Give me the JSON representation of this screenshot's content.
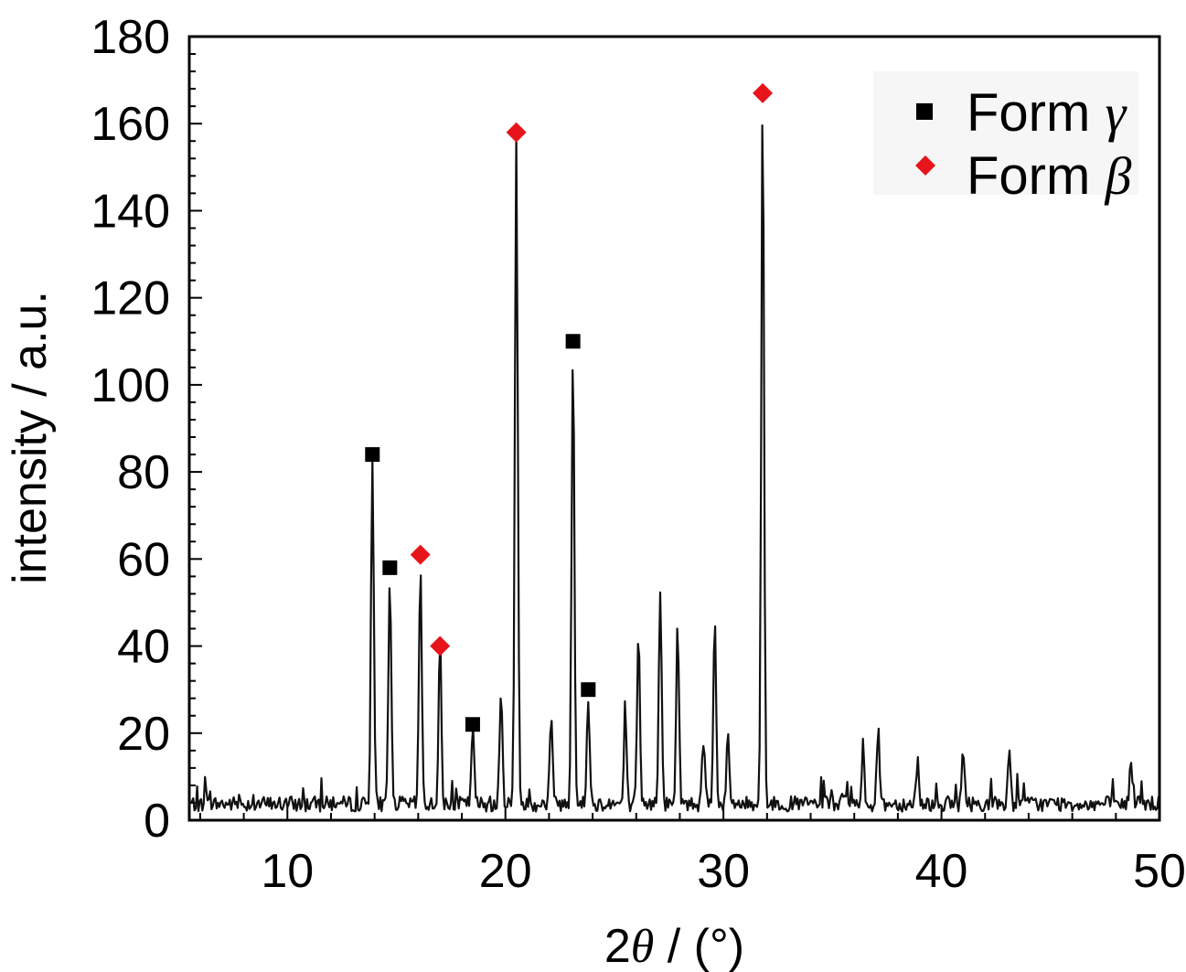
{
  "chart_data": {
    "type": "line",
    "xlabel_prefix": "2",
    "xlabel_symbol": "θ",
    "xlabel_suffix": " / (°)",
    "ylabel": "intensity / a.u.",
    "xlim": [
      5.5,
      50
    ],
    "ylim": [
      0,
      180
    ],
    "xticks": [
      10,
      20,
      30,
      40,
      50
    ],
    "yticks": [
      0,
      20,
      40,
      60,
      80,
      100,
      120,
      140,
      160,
      180
    ],
    "grid": false,
    "legend_position": "top-right",
    "colors": {
      "line": "#111111",
      "form_gamma": "#000000",
      "form_beta": "#e8141b"
    },
    "peaks": [
      {
        "x": 13.9,
        "y": 81
      },
      {
        "x": 14.7,
        "y": 55
      },
      {
        "x": 16.1,
        "y": 56
      },
      {
        "x": 17.0,
        "y": 37
      },
      {
        "x": 18.5,
        "y": 19
      },
      {
        "x": 19.8,
        "y": 27
      },
      {
        "x": 20.5,
        "y": 157
      },
      {
        "x": 22.1,
        "y": 21
      },
      {
        "x": 23.1,
        "y": 106
      },
      {
        "x": 23.8,
        "y": 27
      },
      {
        "x": 25.5,
        "y": 20
      },
      {
        "x": 26.1,
        "y": 42
      },
      {
        "x": 27.1,
        "y": 51
      },
      {
        "x": 27.9,
        "y": 43
      },
      {
        "x": 29.1,
        "y": 17
      },
      {
        "x": 29.6,
        "y": 44
      },
      {
        "x": 30.2,
        "y": 17
      },
      {
        "x": 31.8,
        "y": 165
      },
      {
        "x": 36.4,
        "y": 14
      },
      {
        "x": 37.1,
        "y": 19
      },
      {
        "x": 38.9,
        "y": 12
      },
      {
        "x": 41.0,
        "y": 14
      },
      {
        "x": 43.1,
        "y": 12
      },
      {
        "x": 48.7,
        "y": 12
      }
    ],
    "series": [
      {
        "name": "Form γ",
        "label": "Form",
        "symbol": "γ",
        "marker": "square",
        "color": "#000000",
        "x": [
          13.9,
          14.7,
          18.5,
          23.1,
          23.8
        ],
        "y": [
          84,
          58,
          22,
          110,
          30
        ]
      },
      {
        "name": "Form β",
        "label": "Form",
        "symbol": "β",
        "marker": "diamond",
        "color": "#e8141b",
        "x": [
          16.1,
          17.0,
          20.5,
          31.8
        ],
        "y": [
          61,
          40,
          158,
          167
        ]
      }
    ]
  }
}
